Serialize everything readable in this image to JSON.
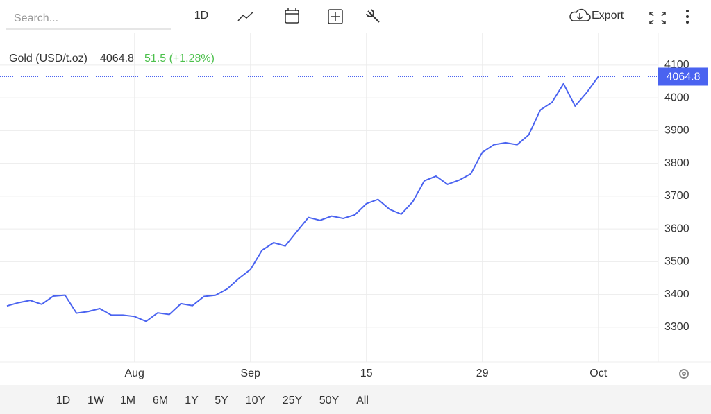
{
  "toolbar": {
    "search_placeholder": "Search...",
    "interval": "1D",
    "export": "Export"
  },
  "chart_data": {
    "type": "line",
    "categories": [
      null,
      null,
      null,
      null,
      null,
      null,
      null,
      null,
      null,
      null,
      null,
      "Aug",
      null,
      null,
      null,
      null,
      null,
      null,
      null,
      null,
      null,
      "Sep",
      null,
      null,
      null,
      null,
      null,
      null,
      null,
      null,
      null,
      "15",
      null,
      null,
      null,
      null,
      null,
      null,
      null,
      null,
      null,
      "29",
      null,
      null,
      null,
      null,
      null,
      null,
      null,
      null,
      null,
      "Oct"
    ],
    "series": [
      {
        "name": "Gold (USD/t.oz)",
        "color": "#4a63f0",
        "values": [
          3365,
          3375,
          3382,
          3370,
          3395,
          3398,
          3343,
          3348,
          3357,
          3337,
          3337,
          3333,
          3318,
          3344,
          3339,
          3372,
          3366,
          3394,
          3398,
          3417,
          3449,
          3476,
          3535,
          3558,
          3548,
          3592,
          3635,
          3626,
          3639,
          3632,
          3643,
          3677,
          3690,
          3660,
          3645,
          3683,
          3747,
          3761,
          3736,
          3749,
          3768,
          3834,
          3857,
          3863,
          3857,
          3887,
          3963,
          3986,
          4043,
          3975,
          4016,
          4064.8
        ]
      }
    ],
    "change": "51.5 (+1.28%)",
    "ylim": [
      3194,
      4197
    ],
    "yticks": [
      3300,
      3400,
      3500,
      3600,
      3700,
      3800,
      3900,
      4000,
      4100
    ],
    "grid": true
  },
  "range_buttons": [
    "1D",
    "1W",
    "1M",
    "6M",
    "1Y",
    "5Y",
    "10Y",
    "25Y",
    "50Y",
    "All"
  ]
}
